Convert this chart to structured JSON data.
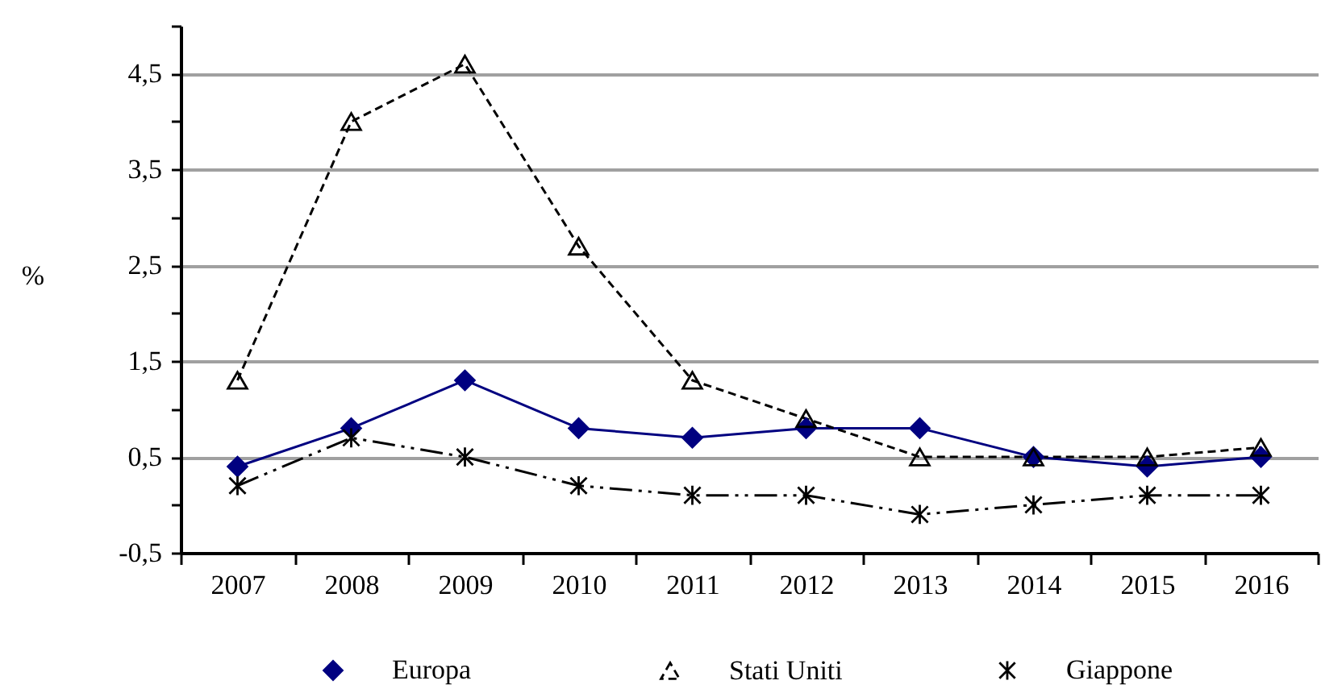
{
  "chart_data": {
    "type": "line",
    "ylabel": "%",
    "categories": [
      "2007",
      "2008",
      "2009",
      "2010",
      "2011",
      "2012",
      "2013",
      "2014",
      "2015",
      "2016"
    ],
    "series": [
      {
        "name": "Europa",
        "color": "#000080",
        "marker": "diamond",
        "line_style": "solid",
        "values": [
          0.4,
          0.8,
          1.3,
          0.8,
          0.7,
          0.8,
          0.8,
          0.5,
          0.4,
          0.5
        ]
      },
      {
        "name": "Stati Uniti",
        "color": "#000000",
        "marker": "triangle",
        "line_style": "dashed",
        "values": [
          1.3,
          4.0,
          4.6,
          2.7,
          1.3,
          0.9,
          0.5,
          0.5,
          0.5,
          0.6
        ]
      },
      {
        "name": "Giappone",
        "color": "#000000",
        "marker": "cross",
        "line_style": "dotted",
        "values": [
          0.2,
          0.7,
          0.5,
          0.2,
          0.1,
          0.1,
          -0.1,
          0.0,
          0.1,
          0.1
        ]
      }
    ],
    "ylim": [
      -0.5,
      5
    ],
    "yticks": [
      {
        "value": -0.5,
        "label": "-0,5"
      },
      {
        "value": 0,
        "label": null
      },
      {
        "value": 0.5,
        "label": "0,5"
      },
      {
        "value": 1,
        "label": null
      },
      {
        "value": 1.5,
        "label": "1,5"
      },
      {
        "value": 2,
        "label": null
      },
      {
        "value": 2.5,
        "label": "2,5"
      },
      {
        "value": 3,
        "label": null
      },
      {
        "value": 3.5,
        "label": "3,5"
      },
      {
        "value": 4,
        "label": null
      },
      {
        "value": 4.5,
        "label": "4,5"
      },
      {
        "value": 5,
        "label": null
      }
    ],
    "grid": "y",
    "legend": "bottom"
  }
}
